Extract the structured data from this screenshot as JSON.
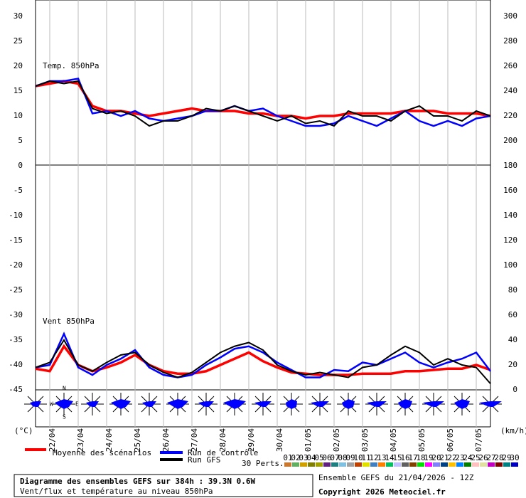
{
  "chart_data": {
    "type": "line",
    "labels": {
      "temp": "Temp. 850hPa",
      "wind": "Vent 850hPa",
      "left_unit": "(°C)",
      "right_unit": "(km/h)"
    },
    "compass": [
      "N",
      "W",
      "E",
      "S"
    ],
    "x": [
      0,
      12,
      24,
      36,
      48,
      60,
      72,
      84,
      96,
      108,
      120,
      132,
      144,
      156,
      168,
      180,
      192,
      204,
      216,
      228,
      240,
      252,
      264,
      276,
      288,
      300,
      312,
      324,
      336,
      348,
      360,
      372,
      384
    ],
    "xlim": [
      0,
      384
    ],
    "xticks": [
      {
        "value": 12,
        "label": "22/04"
      },
      {
        "value": 36,
        "label": "23/04"
      },
      {
        "value": 60,
        "label": "24/04"
      },
      {
        "value": 84,
        "label": "25/04"
      },
      {
        "value": 108,
        "label": "26/04"
      },
      {
        "value": 132,
        "label": "27/04"
      },
      {
        "value": 156,
        "label": "28/04"
      },
      {
        "value": 180,
        "label": "29/04"
      },
      {
        "value": 204,
        "label": "30/04"
      },
      {
        "value": 228,
        "label": "01/05"
      },
      {
        "value": 252,
        "label": "02/05"
      },
      {
        "value": 276,
        "label": "03/05"
      },
      {
        "value": 300,
        "label": "04/05"
      },
      {
        "value": 324,
        "label": "05/05"
      },
      {
        "value": 348,
        "label": "06/05"
      },
      {
        "value": 372,
        "label": "07/05"
      }
    ],
    "ylim": [
      -45,
      33
    ],
    "yticks": [
      30,
      25,
      20,
      15,
      10,
      5,
      0,
      -5,
      -10,
      -15,
      -20,
      -25,
      -30,
      -35,
      -40,
      -45
    ],
    "y2lim": [
      0,
      312
    ],
    "y2ticks": [
      300,
      280,
      260,
      240,
      220,
      200,
      180,
      160,
      140,
      120,
      100,
      80,
      60,
      40,
      20,
      0
    ],
    "series": [
      {
        "name": "Moyenne des scénarios",
        "color": "#ff0000",
        "values": [
          16,
          16.5,
          17,
          16.5,
          12,
          11,
          11,
          10.5,
          10,
          10.5,
          11,
          11.5,
          11,
          11,
          11,
          10.5,
          10.5,
          10,
          10,
          9.5,
          10,
          10,
          10.5,
          10.5,
          10.5,
          10.5,
          11,
          11,
          11,
          10.5,
          10.5,
          10.5,
          10
        ],
        "wind_values": [
          17,
          15,
          35,
          20,
          15,
          18,
          22,
          28,
          20,
          15,
          13,
          13,
          15,
          20,
          25,
          30,
          23,
          18,
          14,
          13,
          12,
          12,
          12,
          13,
          13,
          13,
          15,
          15,
          16,
          17,
          17,
          20,
          16
        ]
      },
      {
        "name": "Run de contrôle",
        "color": "#0000ff",
        "values": [
          16,
          17,
          17,
          17.5,
          10.5,
          11,
          10,
          11,
          9.5,
          9,
          9.5,
          10,
          11,
          11,
          12,
          11,
          11.5,
          10,
          9,
          8,
          8,
          8.5,
          10,
          9,
          8,
          9.5,
          11,
          9,
          8,
          9,
          8,
          9.5,
          10
        ],
        "wind_values": [
          18,
          20,
          45,
          18,
          12,
          20,
          25,
          32,
          18,
          12,
          10,
          12,
          20,
          26,
          33,
          35,
          30,
          22,
          16,
          10,
          10,
          16,
          15,
          22,
          20,
          25,
          30,
          22,
          18,
          22,
          25,
          30,
          15
        ]
      },
      {
        "name": "Run GFS",
        "color": "#000000",
        "values": [
          16,
          17,
          16.5,
          17,
          11.5,
          10.5,
          11,
          10,
          8,
          9,
          9,
          10,
          11.5,
          11,
          12,
          11,
          10,
          9,
          10,
          8.5,
          9,
          8,
          11,
          10,
          10,
          9,
          11,
          12,
          10,
          10,
          9,
          11,
          10
        ],
        "wind_values": [
          18,
          22,
          40,
          20,
          15,
          22,
          28,
          30,
          20,
          14,
          10,
          14,
          22,
          30,
          35,
          38,
          32,
          20,
          15,
          12,
          14,
          12,
          10,
          18,
          20,
          28,
          35,
          30,
          20,
          25,
          20,
          18,
          5
        ]
      }
    ],
    "perts": {
      "title": "30 Perts.",
      "items": [
        {
          "label": "01",
          "color": "#c87830"
        },
        {
          "label": "02",
          "color": "#60b060"
        },
        {
          "label": "03",
          "color": "#d0a000"
        },
        {
          "label": "04",
          "color": "#808000"
        },
        {
          "label": "05",
          "color": "#a0a000"
        },
        {
          "label": "06",
          "color": "#602080"
        },
        {
          "label": "07",
          "color": "#208080"
        },
        {
          "label": "08",
          "color": "#80c0e0"
        },
        {
          "label": "09",
          "color": "#a0a0a0"
        },
        {
          "label": "10",
          "color": "#c04000"
        },
        {
          "label": "11",
          "color": "#e0e000"
        },
        {
          "label": "12",
          "color": "#4080c0"
        },
        {
          "label": "13",
          "color": "#ff8000"
        },
        {
          "label": "14",
          "color": "#00c060"
        },
        {
          "label": "15",
          "color": "#c0c0ff"
        },
        {
          "label": "16",
          "color": "#606060"
        },
        {
          "label": "17",
          "color": "#804000"
        },
        {
          "label": "18",
          "color": "#00e000"
        },
        {
          "label": "19",
          "color": "#ff00ff"
        },
        {
          "label": "20",
          "color": "#8080ff"
        },
        {
          "label": "21",
          "color": "#004080"
        },
        {
          "label": "22",
          "color": "#ffc000"
        },
        {
          "label": "23",
          "color": "#0080ff"
        },
        {
          "label": "24",
          "color": "#008000"
        },
        {
          "label": "25",
          "color": "#ffc0c0"
        },
        {
          "label": "26",
          "color": "#e0e0a0"
        },
        {
          "label": "27",
          "color": "#c000c0"
        },
        {
          "label": "28",
          "color": "#800000"
        },
        {
          "label": "29",
          "color": "#008080"
        },
        {
          "label": "30",
          "color": "#0000c0"
        }
      ]
    },
    "footer": {
      "title": "Diagramme des ensembles GEFS sur 384h : 39.3N 0.6W",
      "subtitle": "Vent/flux et température au niveau 850hPa",
      "run": "Ensemble GEFS du 21/04/2026 - 12Z",
      "copyright": "Copyright 2026 Meteociel.fr"
    }
  }
}
